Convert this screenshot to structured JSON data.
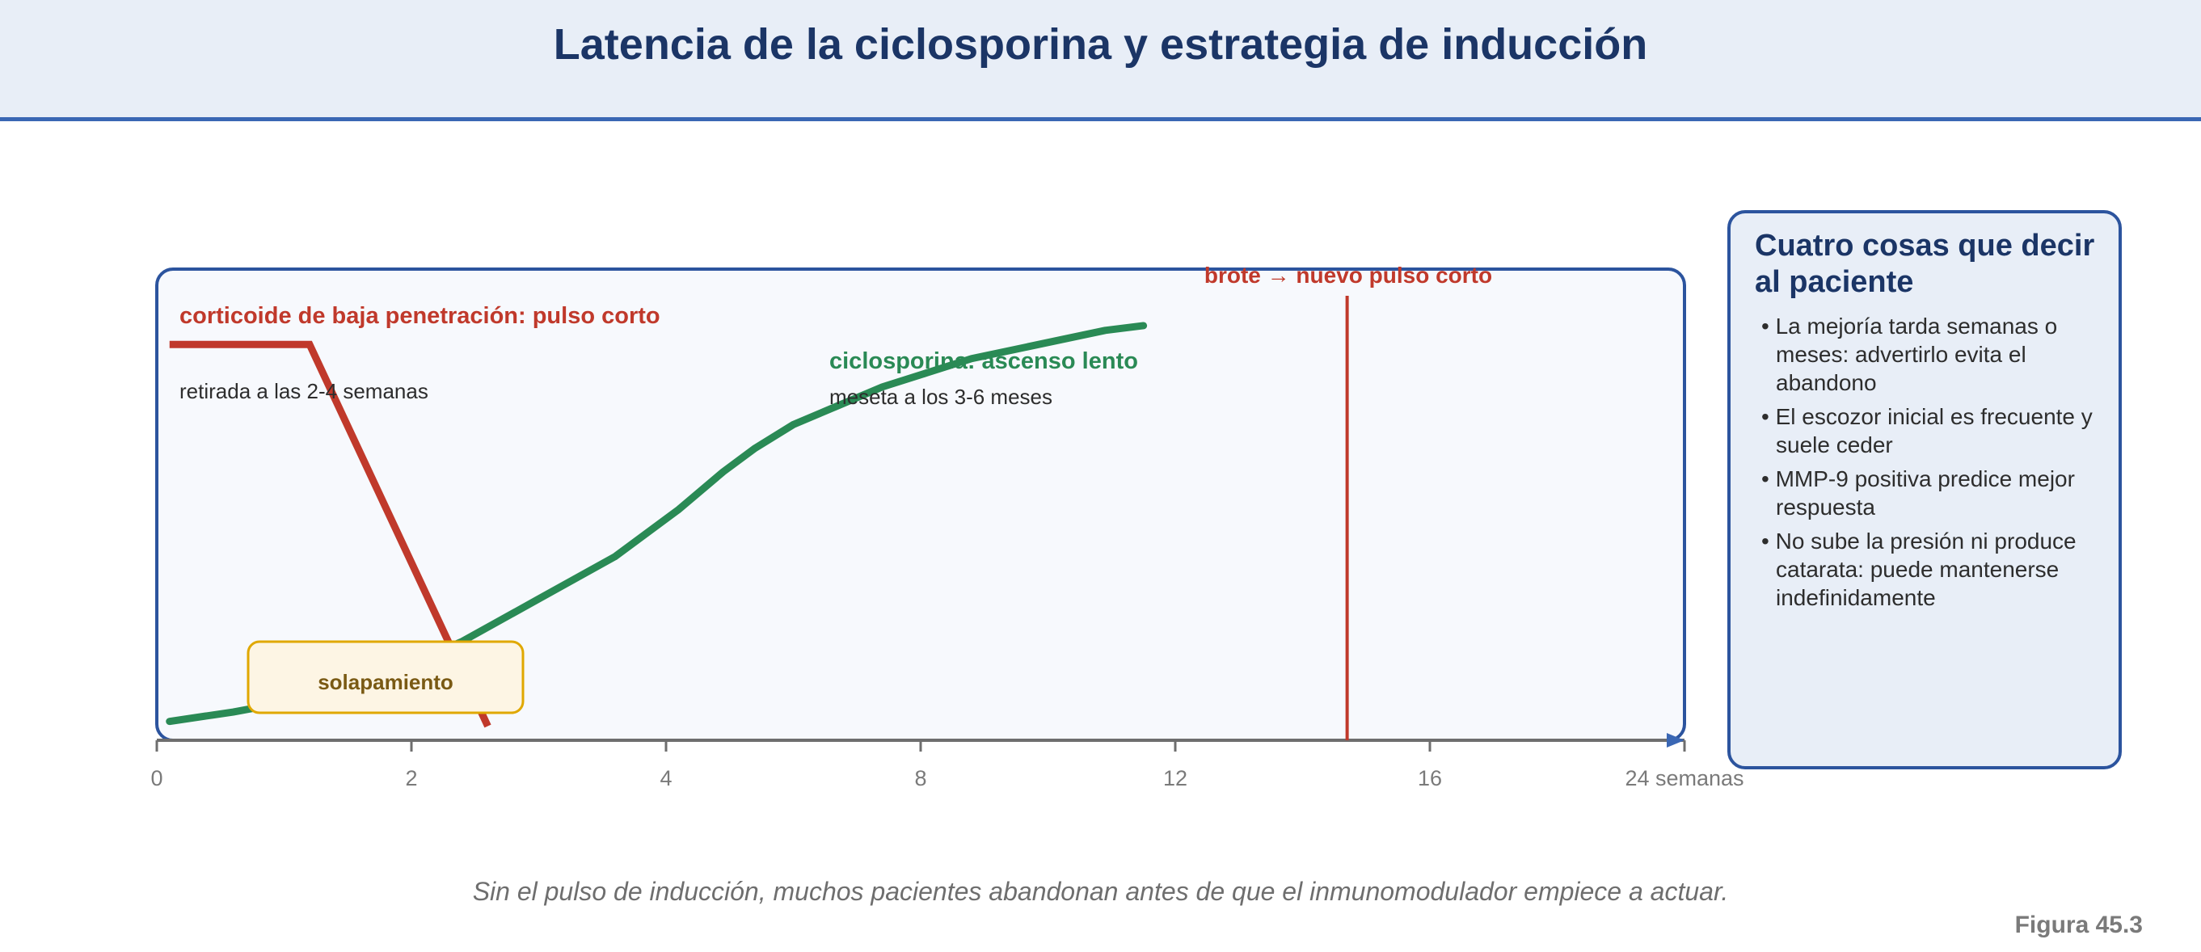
{
  "header": {
    "title": "Latencia de la ciclosporina y estrategia de inducción"
  },
  "chart_data": {
    "type": "line",
    "x_axis": {
      "ticks": [
        "0",
        "2",
        "4",
        "8",
        "12",
        "16",
        "24 semanas"
      ]
    },
    "series": [
      {
        "name": "corticoide de baja penetración: pulso corto",
        "note": "retirada a las 2-4 semanas",
        "color": "#c0392b",
        "points": [
          [
            0.1,
            0.84
          ],
          [
            1.2,
            0.84
          ],
          [
            2.6,
            0.03
          ]
        ]
      },
      {
        "name": "ciclosporina: ascenso lento",
        "note": "meseta a los 3-6 meses",
        "color": "#2a8a55",
        "curve_polyline": [
          [
            0.1,
            0.04
          ],
          [
            0.6,
            0.06
          ],
          [
            1.2,
            0.09
          ],
          [
            1.8,
            0.14
          ],
          [
            2.4,
            0.21
          ],
          [
            3.0,
            0.3
          ],
          [
            3.6,
            0.39
          ],
          [
            4.2,
            0.49
          ],
          [
            4.9,
            0.57
          ],
          [
            5.4,
            0.62
          ],
          [
            6.0,
            0.67
          ],
          [
            6.7,
            0.71
          ],
          [
            7.4,
            0.75
          ],
          [
            8.1,
            0.78
          ],
          [
            8.8,
            0.81
          ],
          [
            9.5,
            0.83
          ],
          [
            10.2,
            0.85
          ],
          [
            10.9,
            0.87
          ],
          [
            11.5,
            0.88
          ]
        ]
      }
    ],
    "markers": [
      {
        "label": "brote → nuevo pulso corto",
        "x": 14.7,
        "color": "#c0392b"
      }
    ],
    "annotations": [
      {
        "label": "solapamiento"
      }
    ],
    "colors": {
      "frame": "#2c549e",
      "axis": "#7a7a7a",
      "overlap_fill": "#fdf5e4",
      "overlap_border": "#e0a800",
      "overlap_text": "#7a5a14"
    }
  },
  "side_panel": {
    "title": "Cuatro cosas que decir al paciente",
    "items": [
      "La mejoría tarda semanas o meses: advertirlo evita el abandono",
      "El escozor inicial es frecuente y suele ceder",
      "MMP-9 positiva predice mejor respuesta",
      "No sube la presión ni produce catarata: puede mantenerse indefinidamente"
    ]
  },
  "caption": "Sin el pulso de inducción, muchos pacientes abandonan antes de que el inmunomodulador empiece a actuar.",
  "figure_label": "Figura 45.3"
}
